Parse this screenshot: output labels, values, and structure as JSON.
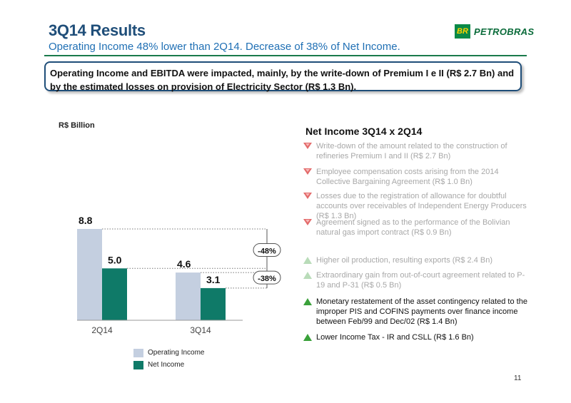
{
  "header": {
    "title": "3Q14 Results",
    "subtitle": "Operating Income 48% lower than 2Q14. Decrease of 38% of Net Income.",
    "logo_mark": "BR",
    "logo_text": "PETROBRAS"
  },
  "callout": {
    "text": "Operating Income and EBITDA were impacted, mainly, by the write-down of Premium I e II (R$ 2.7 Bn) and by the estimated losses on provision of Electricity Sector (R$ 1.3 Bn)."
  },
  "chart_data": {
    "type": "bar",
    "unit_label": "R$ Billion",
    "categories": [
      "2Q14",
      "3Q14"
    ],
    "series": [
      {
        "name": "Operating Income",
        "values": [
          8.8,
          4.6
        ],
        "color": "#c4cfe0"
      },
      {
        "name": "Net Income",
        "values": [
          5.0,
          3.1
        ],
        "color": "#0f7a68"
      }
    ],
    "value_labels": [
      [
        "8.8",
        "4.6"
      ],
      [
        "5.0",
        "3.1"
      ]
    ],
    "ylim": [
      0,
      8.8
    ],
    "annotations": [
      {
        "label": "-48%",
        "from": 8.8,
        "to": 4.6
      },
      {
        "label": "-38%",
        "from": 5.0,
        "to": 3.1
      }
    ],
    "legend_placement": "bottom"
  },
  "panel": {
    "title": "Net Income 3Q14 x 2Q14",
    "items": [
      {
        "kind": "neg",
        "text": "Write-down  of the amount related to the construction of refineries Premium I and II (R$ 2.7 Bn)"
      },
      {
        "kind": "neg",
        "text": "Employee compensation costs arising from the 2014 Collective Bargaining Agreement (R$ 1.0 Bn)"
      },
      {
        "kind": "neg",
        "text": "Losses due to the registration of allowance for doubtful accounts over receivables of Independent Energy Producers (R$ 1.3 Bn)"
      },
      {
        "kind": "neg",
        "text": "Agreement signed as to the performance of the Bolivian natural gas import contract (R$ 0.9 Bn)"
      },
      {
        "kind": "pos-light",
        "text": "Higher oil production, resulting exports (R$ 2.4 Bn)"
      },
      {
        "kind": "pos-light",
        "text": "Extraordinary gain from out-of-court agreement related to P-19 and P-31 (R$ 0.5 Bn)"
      },
      {
        "kind": "pos",
        "text": "Monetary restatement of the asset contingency related to the improper PIS and COFINS payments over finance income between Feb/99 and Dec/02 (R$ 1.4 Bn)"
      },
      {
        "kind": "pos",
        "text": "Lower Income Tax - IR and CSLL (R$ 1.6 Bn)"
      }
    ]
  },
  "footer": {
    "page_number": "11"
  }
}
